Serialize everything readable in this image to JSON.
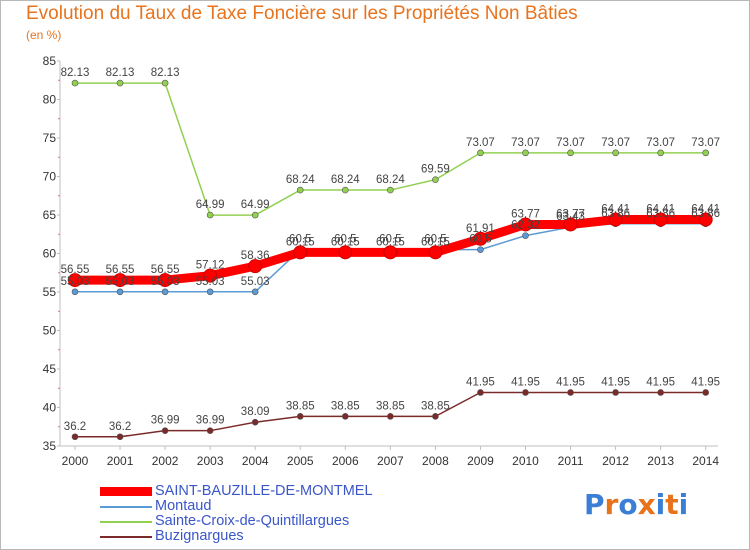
{
  "chart_data": {
    "type": "line",
    "title": "Evolution du Taux de Taxe Foncière sur les Propriétés Non Bâties",
    "ylabel": "(en %)",
    "xlabel": "",
    "x": [
      "2000",
      "2001",
      "2002",
      "2003",
      "2004",
      "2005",
      "2006",
      "2007",
      "2008",
      "2009",
      "2010",
      "2011",
      "2012",
      "2013",
      "2014"
    ],
    "ylim": [
      35,
      85
    ],
    "yticks": [
      35,
      40,
      45,
      50,
      55,
      60,
      65,
      70,
      75,
      80,
      85
    ],
    "grid": false,
    "legend_position": "bottom-left",
    "series": [
      {
        "name": "SAINT-BAUZILLE-DE-MONTMEL",
        "color": "#ff0000",
        "values": [
          56.55,
          56.55,
          56.55,
          57.12,
          58.36,
          60.15,
          60.15,
          60.15,
          60.15,
          61.91,
          63.77,
          63.77,
          64.41,
          64.41,
          64.41
        ],
        "labels": [
          "56.55",
          "56.55",
          "56.55",
          "57.12",
          "58.36",
          "60.15",
          "60.15",
          "60.15",
          "60.15",
          "61.91",
          "63.77",
          "63.77",
          "64.41",
          "64.41",
          "64.41"
        ]
      },
      {
        "name": "Montaud",
        "color": "#5b9bd5",
        "values": [
          55.03,
          55.03,
          55.03,
          55.03,
          55.03,
          60.5,
          60.5,
          60.5,
          60.5,
          60.5,
          62.32,
          63.43,
          63.86,
          63.86,
          63.86
        ],
        "labels": [
          "55.03",
          "55.03",
          "55.03",
          "55.03",
          "55.03",
          "60.5",
          "60.5",
          "60.5",
          "60.5",
          "60.5",
          "62.32",
          "63.43",
          "63.86",
          "63.86",
          "63.86"
        ]
      },
      {
        "name": "Sainte-Croix-de-Quintillargues",
        "color": "#92d050",
        "values": [
          82.13,
          82.13,
          82.13,
          64.99,
          64.99,
          68.24,
          68.24,
          68.24,
          69.59,
          73.07,
          73.07,
          73.07,
          73.07,
          73.07,
          73.07
        ],
        "labels": [
          "82.13",
          "82.13",
          "82.13",
          "64.99",
          "64.99",
          "68.24",
          "68.24",
          "68.24",
          "69.59",
          "73.07",
          "73.07",
          "73.07",
          "73.07",
          "73.07",
          "73.07"
        ]
      },
      {
        "name": "Buzignargues",
        "color": "#7b2a2a",
        "values": [
          36.2,
          36.2,
          36.99,
          36.99,
          38.09,
          38.85,
          38.85,
          38.85,
          38.85,
          41.95,
          41.95,
          41.95,
          41.95,
          41.95,
          41.95
        ],
        "labels": [
          "36.2",
          "36.2",
          "36.99",
          "36.99",
          "38.09",
          "38.85",
          "38.85",
          "38.85",
          "38.85",
          "41.95",
          "41.95",
          "41.95",
          "41.95",
          "41.95",
          "41.95"
        ]
      }
    ]
  },
  "logo": {
    "text": "Proxiti",
    "letter_colors": [
      "#3a7fd5",
      "#e8731d",
      "#3a7fd5",
      "#e8731d",
      "#3a7fd5",
      "#e8731d",
      "#3a7fd5"
    ]
  }
}
